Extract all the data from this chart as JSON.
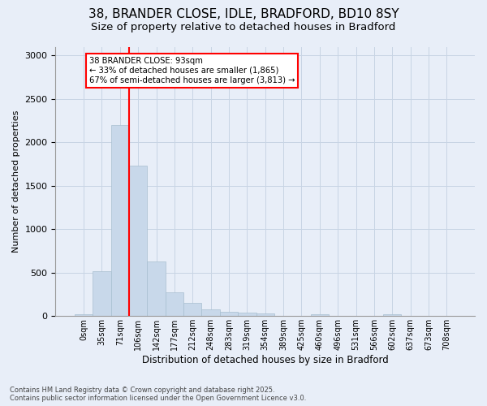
{
  "title1": "38, BRANDER CLOSE, IDLE, BRADFORD, BD10 8SY",
  "title2": "Size of property relative to detached houses in Bradford",
  "xlabel": "Distribution of detached houses by size in Bradford",
  "ylabel": "Number of detached properties",
  "bar_categories": [
    "0sqm",
    "35sqm",
    "71sqm",
    "106sqm",
    "142sqm",
    "177sqm",
    "212sqm",
    "248sqm",
    "283sqm",
    "319sqm",
    "354sqm",
    "389sqm",
    "425sqm",
    "460sqm",
    "496sqm",
    "531sqm",
    "566sqm",
    "602sqm",
    "637sqm",
    "673sqm",
    "708sqm"
  ],
  "bar_values": [
    20,
    520,
    2200,
    1730,
    630,
    270,
    155,
    80,
    50,
    40,
    35,
    0,
    0,
    20,
    0,
    0,
    0,
    20,
    0,
    0,
    0
  ],
  "bar_color": "#c8d8ea",
  "bar_edgecolor": "#a8bfd0",
  "vline_color": "red",
  "annotation_text": "38 BRANDER CLOSE: 93sqm\n← 33% of detached houses are smaller (1,865)\n67% of semi-detached houses are larger (3,813) →",
  "annotation_box_color": "white",
  "annotation_box_edgecolor": "red",
  "ylim": [
    0,
    3100
  ],
  "yticks": [
    0,
    500,
    1000,
    1500,
    2000,
    2500,
    3000
  ],
  "grid_color": "#c8d4e4",
  "background_color": "#e8eef8",
  "footer_text": "Contains HM Land Registry data © Crown copyright and database right 2025.\nContains public sector information licensed under the Open Government Licence v3.0.",
  "title_fontsize": 11,
  "subtitle_fontsize": 9.5
}
